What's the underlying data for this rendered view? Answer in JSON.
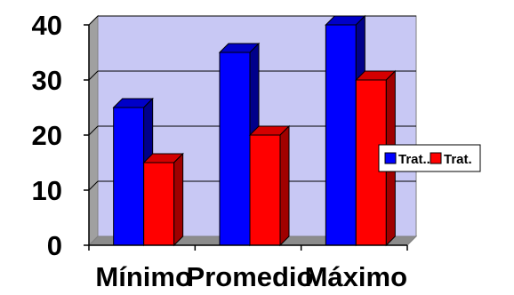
{
  "chart_data": {
    "type": "bar",
    "categories": [
      "Mínimo",
      "Promedio",
      "Máximo"
    ],
    "series": [
      {
        "name": "Trat...",
        "values": [
          25,
          35,
          40
        ]
      },
      {
        "name": "Trat.",
        "values": [
          15,
          20,
          30
        ]
      }
    ],
    "y_ticks": [
      "0",
      "10",
      "20",
      "30",
      "40"
    ],
    "ylim": [
      0,
      40
    ],
    "grid": true,
    "three_d": true,
    "legend_position": "right",
    "colors": {
      "series": [
        "#0000ff",
        "#ff0000"
      ],
      "series_dark": [
        "#00008a",
        "#a00000"
      ],
      "series_top": [
        "#0000c8",
        "#d40000"
      ],
      "plot_back": "#c8c8f4",
      "plot_side": "#a0a0a0",
      "plot_floor": "#8c8c8c",
      "gridline": "#000000"
    }
  }
}
